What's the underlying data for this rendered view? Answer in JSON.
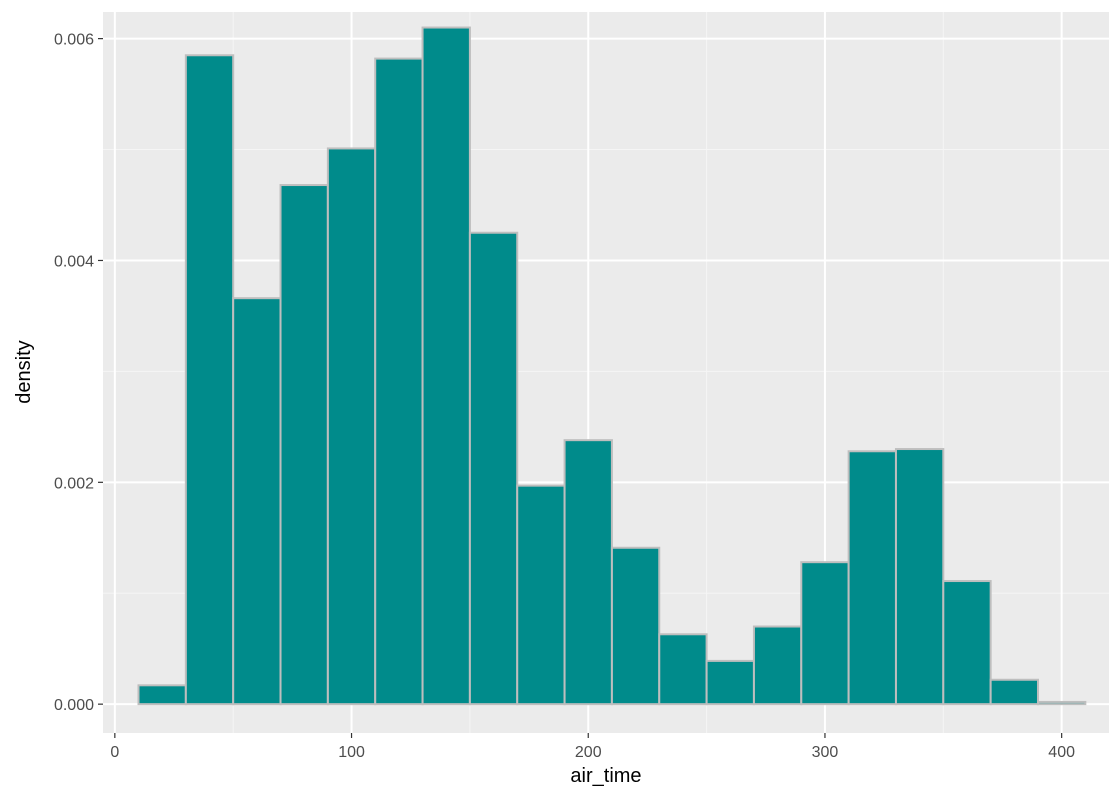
{
  "chart_data": {
    "type": "bar",
    "subtype": "histogram",
    "xlabel": "air_time",
    "ylabel": "density",
    "xlim": [
      -5,
      420
    ],
    "ylim": [
      -0.00026,
      0.00624
    ],
    "x_ticks": [
      0,
      100,
      200,
      300,
      400
    ],
    "x_tick_labels": [
      "0",
      "100",
      "200",
      "300",
      "400"
    ],
    "y_ticks": [
      0.0,
      0.002,
      0.004,
      0.006
    ],
    "y_tick_labels": [
      "0.000",
      "0.002",
      "0.004",
      "0.006"
    ],
    "grid": true,
    "legend": "none",
    "bin_width": 20,
    "bins": [
      {
        "x0": 10,
        "x1": 30,
        "value": 0.00017
      },
      {
        "x0": 30,
        "x1": 50,
        "value": 0.00585
      },
      {
        "x0": 50,
        "x1": 70,
        "value": 0.00366
      },
      {
        "x0": 70,
        "x1": 90,
        "value": 0.00468
      },
      {
        "x0": 90,
        "x1": 110,
        "value": 0.00501
      },
      {
        "x0": 110,
        "x1": 130,
        "value": 0.00582
      },
      {
        "x0": 130,
        "x1": 150,
        "value": 0.0061
      },
      {
        "x0": 150,
        "x1": 170,
        "value": 0.00425
      },
      {
        "x0": 170,
        "x1": 190,
        "value": 0.00197
      },
      {
        "x0": 190,
        "x1": 210,
        "value": 0.00238
      },
      {
        "x0": 210,
        "x1": 230,
        "value": 0.00141
      },
      {
        "x0": 230,
        "x1": 250,
        "value": 0.00063
      },
      {
        "x0": 250,
        "x1": 270,
        "value": 0.00039
      },
      {
        "x0": 270,
        "x1": 290,
        "value": 0.0007
      },
      {
        "x0": 290,
        "x1": 310,
        "value": 0.00128
      },
      {
        "x0": 310,
        "x1": 330,
        "value": 0.00228
      },
      {
        "x0": 330,
        "x1": 350,
        "value": 0.0023
      },
      {
        "x0": 350,
        "x1": 370,
        "value": 0.00111
      },
      {
        "x0": 370,
        "x1": 390,
        "value": 0.00022
      },
      {
        "x0": 390,
        "x1": 410,
        "value": 2e-05
      }
    ],
    "colors": {
      "bar_fill": "#008b8b",
      "bar_outline": "#bebebe",
      "panel_background": "#ebebeb",
      "grid_major": "#ffffff",
      "grid_minor": "#f5f5f5",
      "axis_text": "#4d4d4d"
    }
  }
}
